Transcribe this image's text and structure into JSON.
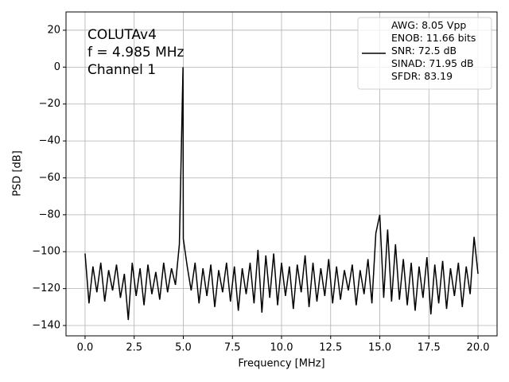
{
  "chart_data": {
    "type": "line",
    "xlabel": "Frequency [MHz]",
    "ylabel": "PSD [dB]",
    "annotations": [
      "COLUTAv4",
      "f = 4.985 MHz",
      "Channel 1"
    ],
    "x": [
      0,
      0.2,
      0.4,
      0.6,
      0.8,
      1.0,
      1.2,
      1.4,
      1.6,
      1.8,
      2.0,
      2.2,
      2.4,
      2.6,
      2.8,
      3.0,
      3.2,
      3.4,
      3.6,
      3.8,
      4.0,
      4.2,
      4.4,
      4.6,
      4.8,
      4.985,
      5.0,
      5.2,
      5.4,
      5.6,
      5.8,
      6.0,
      6.2,
      6.4,
      6.6,
      6.8,
      7.0,
      7.2,
      7.4,
      7.6,
      7.8,
      8.0,
      8.2,
      8.4,
      8.6,
      8.8,
      9.0,
      9.2,
      9.4,
      9.6,
      9.8,
      10.0,
      10.2,
      10.4,
      10.6,
      10.8,
      11.0,
      11.2,
      11.4,
      11.6,
      11.8,
      12.0,
      12.2,
      12.4,
      12.6,
      12.8,
      13.0,
      13.2,
      13.4,
      13.6,
      13.8,
      14.0,
      14.2,
      14.4,
      14.6,
      14.8,
      15.0,
      15.2,
      15.4,
      15.6,
      15.8,
      16.0,
      16.2,
      16.4,
      16.6,
      16.8,
      17.0,
      17.2,
      17.4,
      17.6,
      17.8,
      18.0,
      18.2,
      18.4,
      18.6,
      18.8,
      19.0,
      19.2,
      19.4,
      19.6,
      19.8,
      20.0
    ],
    "series": [
      {
        "name": "AWG: 8.05 Vpp\nENOB: 11.66 bits\nSNR: 72.5 dB\nSINAD: 71.95 dB\nSFDR: 83.19",
        "color": "#000000",
        "values": [
          -101,
          -128,
          -108,
          -122,
          -106,
          -127,
          -110,
          -121,
          -107,
          -125,
          -112,
          -137,
          -106,
          -124,
          -109,
          -129,
          -107,
          -123,
          -111,
          -126,
          -106,
          -122,
          -109,
          -118,
          -96,
          0,
          -93,
          -108,
          -121,
          -106,
          -128,
          -109,
          -124,
          -107,
          -130,
          -110,
          -122,
          -106,
          -127,
          -108,
          -132,
          -109,
          -123,
          -106,
          -128,
          -99,
          -133,
          -102,
          -125,
          -101,
          -129,
          -106,
          -124,
          -108,
          -131,
          -107,
          -122,
          -102,
          -130,
          -106,
          -127,
          -109,
          -124,
          -104,
          -128,
          -108,
          -126,
          -110,
          -121,
          -107,
          -129,
          -110,
          -123,
          -104,
          -128,
          -90,
          -80,
          -125,
          -88,
          -127,
          -96,
          -126,
          -104,
          -129,
          -106,
          -132,
          -108,
          -125,
          -103,
          -134,
          -107,
          -128,
          -105,
          -131,
          -109,
          -124,
          -106,
          -130,
          -108,
          -123,
          -92,
          -112
        ]
      }
    ],
    "xlim": [
      -0.97,
      20.97
    ],
    "ylim": [
      -145.6,
      29.9
    ],
    "xticks": [
      {
        "value": 0,
        "label": "0.0"
      },
      {
        "value": 2.5,
        "label": "2.5"
      },
      {
        "value": 5,
        "label": "5.0"
      },
      {
        "value": 7.5,
        "label": "7.5"
      },
      {
        "value": 10,
        "label": "10.0"
      },
      {
        "value": 12.5,
        "label": "12.5"
      },
      {
        "value": 15,
        "label": "15.0"
      },
      {
        "value": 17.5,
        "label": "17.5"
      },
      {
        "value": 20,
        "label": "20.0"
      }
    ],
    "yticks": [
      20,
      0,
      {
        "value": -20,
        "label": "−20"
      },
      {
        "value": -40,
        "label": "−40"
      },
      {
        "value": -60,
        "label": "−60"
      },
      {
        "value": -80,
        "label": "−80"
      },
      {
        "value": -100,
        "label": "−100"
      },
      {
        "value": -120,
        "label": "−120"
      },
      {
        "value": -140,
        "label": "−140"
      }
    ],
    "grid": true,
    "legend": "upper right"
  }
}
